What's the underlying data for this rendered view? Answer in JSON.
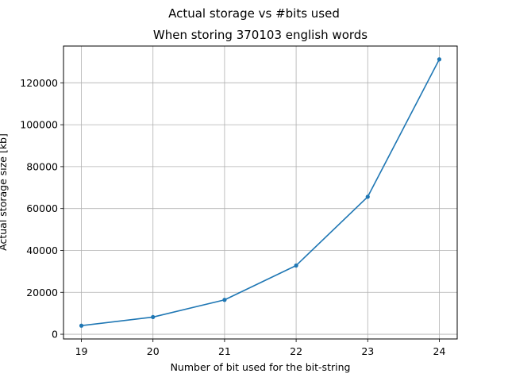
{
  "figure": {
    "suptitle": "Actual storage vs #bits used"
  },
  "chart_data": {
    "type": "line",
    "title": "When storing 370103 english words",
    "xlabel": "Number of bit used for the bit-string",
    "ylabel": "Actual storage size [kb]",
    "x": [
      19,
      20,
      21,
      22,
      23,
      24
    ],
    "series": [
      {
        "values": [
          4100,
          8200,
          16400,
          32800,
          65600,
          131200
        ],
        "color": "#1f77b4",
        "marker": "circle"
      }
    ],
    "xticks": [
      19,
      20,
      21,
      22,
      23,
      24
    ],
    "yticks": [
      0,
      20000,
      40000,
      60000,
      80000,
      100000,
      120000
    ],
    "xlim": [
      18.75,
      24.25
    ],
    "ylim": [
      -2255,
      137555
    ],
    "grid": true,
    "legend": false
  }
}
